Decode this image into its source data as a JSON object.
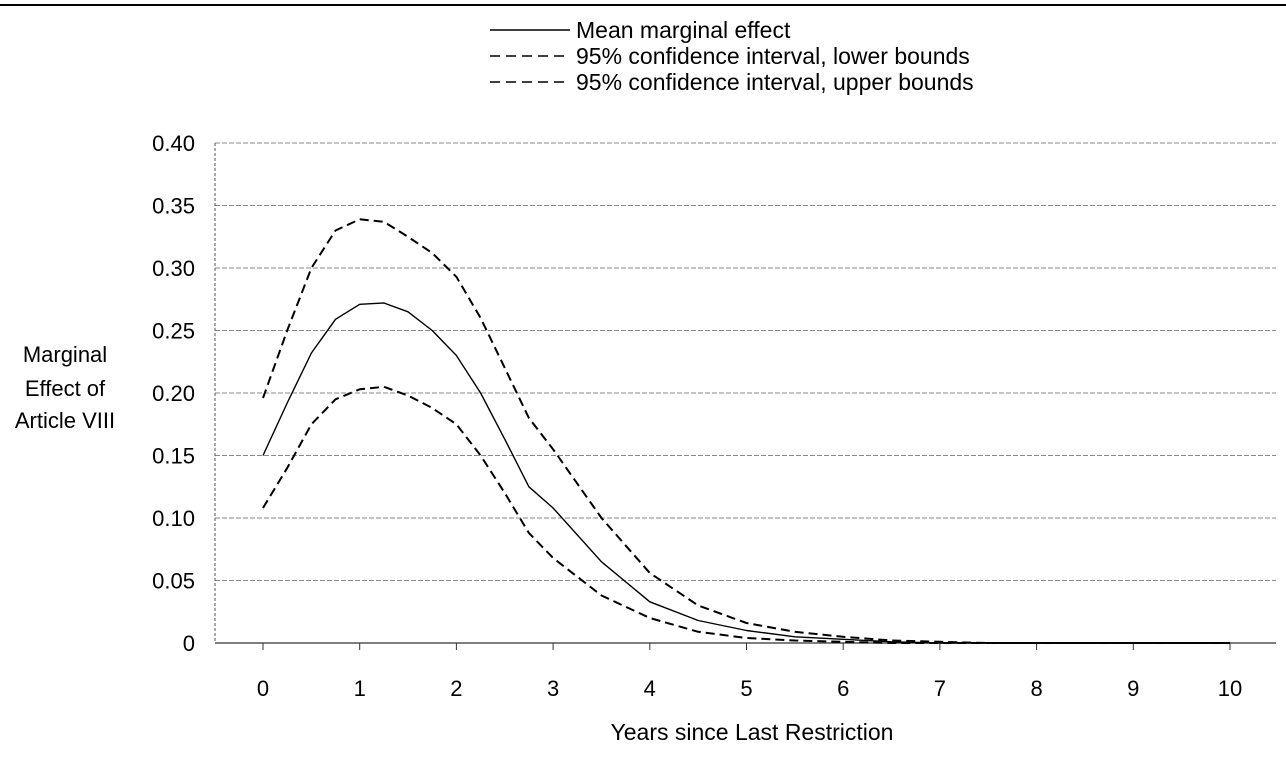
{
  "chart_data": {
    "type": "line",
    "title": "",
    "xlabel": "Years since Last Restriction",
    "ylabel_lines": [
      "Marginal",
      "Effect of",
      "Article VIII"
    ],
    "xlim": [
      0,
      10
    ],
    "ylim": [
      0,
      0.4
    ],
    "x_ticks": [
      "0",
      "1",
      "2",
      "3",
      "4",
      "5",
      "6",
      "7",
      "8",
      "9",
      "10"
    ],
    "y_ticks": [
      "0",
      "0.05",
      "0.10",
      "0.15",
      "0.20",
      "0.25",
      "0.30",
      "0.35",
      "0.40"
    ],
    "grid": "horizontal",
    "legend_position": "top",
    "x": [
      0,
      0.25,
      0.5,
      0.75,
      1,
      1.25,
      1.5,
      1.75,
      2,
      2.25,
      2.5,
      2.75,
      3,
      3.5,
      4,
      4.5,
      5,
      5.5,
      6,
      6.5,
      7,
      7.5,
      8,
      9,
      10
    ],
    "series": [
      {
        "name": "Mean marginal effect",
        "style": "solid",
        "values": [
          0.15,
          0.192,
          0.232,
          0.259,
          0.271,
          0.272,
          0.265,
          0.25,
          0.23,
          0.2,
          0.163,
          0.125,
          0.108,
          0.065,
          0.033,
          0.018,
          0.01,
          0.005,
          0.003,
          0.001,
          0.0,
          0.0,
          0.0,
          0.0,
          0.0
        ]
      },
      {
        "name": "95% confidence interval, lower bounds",
        "style": "dashed",
        "values": [
          0.108,
          0.14,
          0.175,
          0.195,
          0.203,
          0.205,
          0.198,
          0.188,
          0.175,
          0.15,
          0.12,
          0.088,
          0.068,
          0.038,
          0.02,
          0.009,
          0.004,
          0.002,
          0.001,
          0.0,
          0.0,
          0.0,
          0.0,
          0.0,
          0.0
        ]
      },
      {
        "name": "95% confidence interval, upper bounds",
        "style": "dashed",
        "values": [
          0.196,
          0.25,
          0.3,
          0.33,
          0.339,
          0.337,
          0.325,
          0.312,
          0.293,
          0.26,
          0.22,
          0.18,
          0.155,
          0.1,
          0.056,
          0.03,
          0.016,
          0.009,
          0.005,
          0.002,
          0.001,
          0.0,
          0.0,
          0.0,
          0.0
        ]
      }
    ]
  }
}
